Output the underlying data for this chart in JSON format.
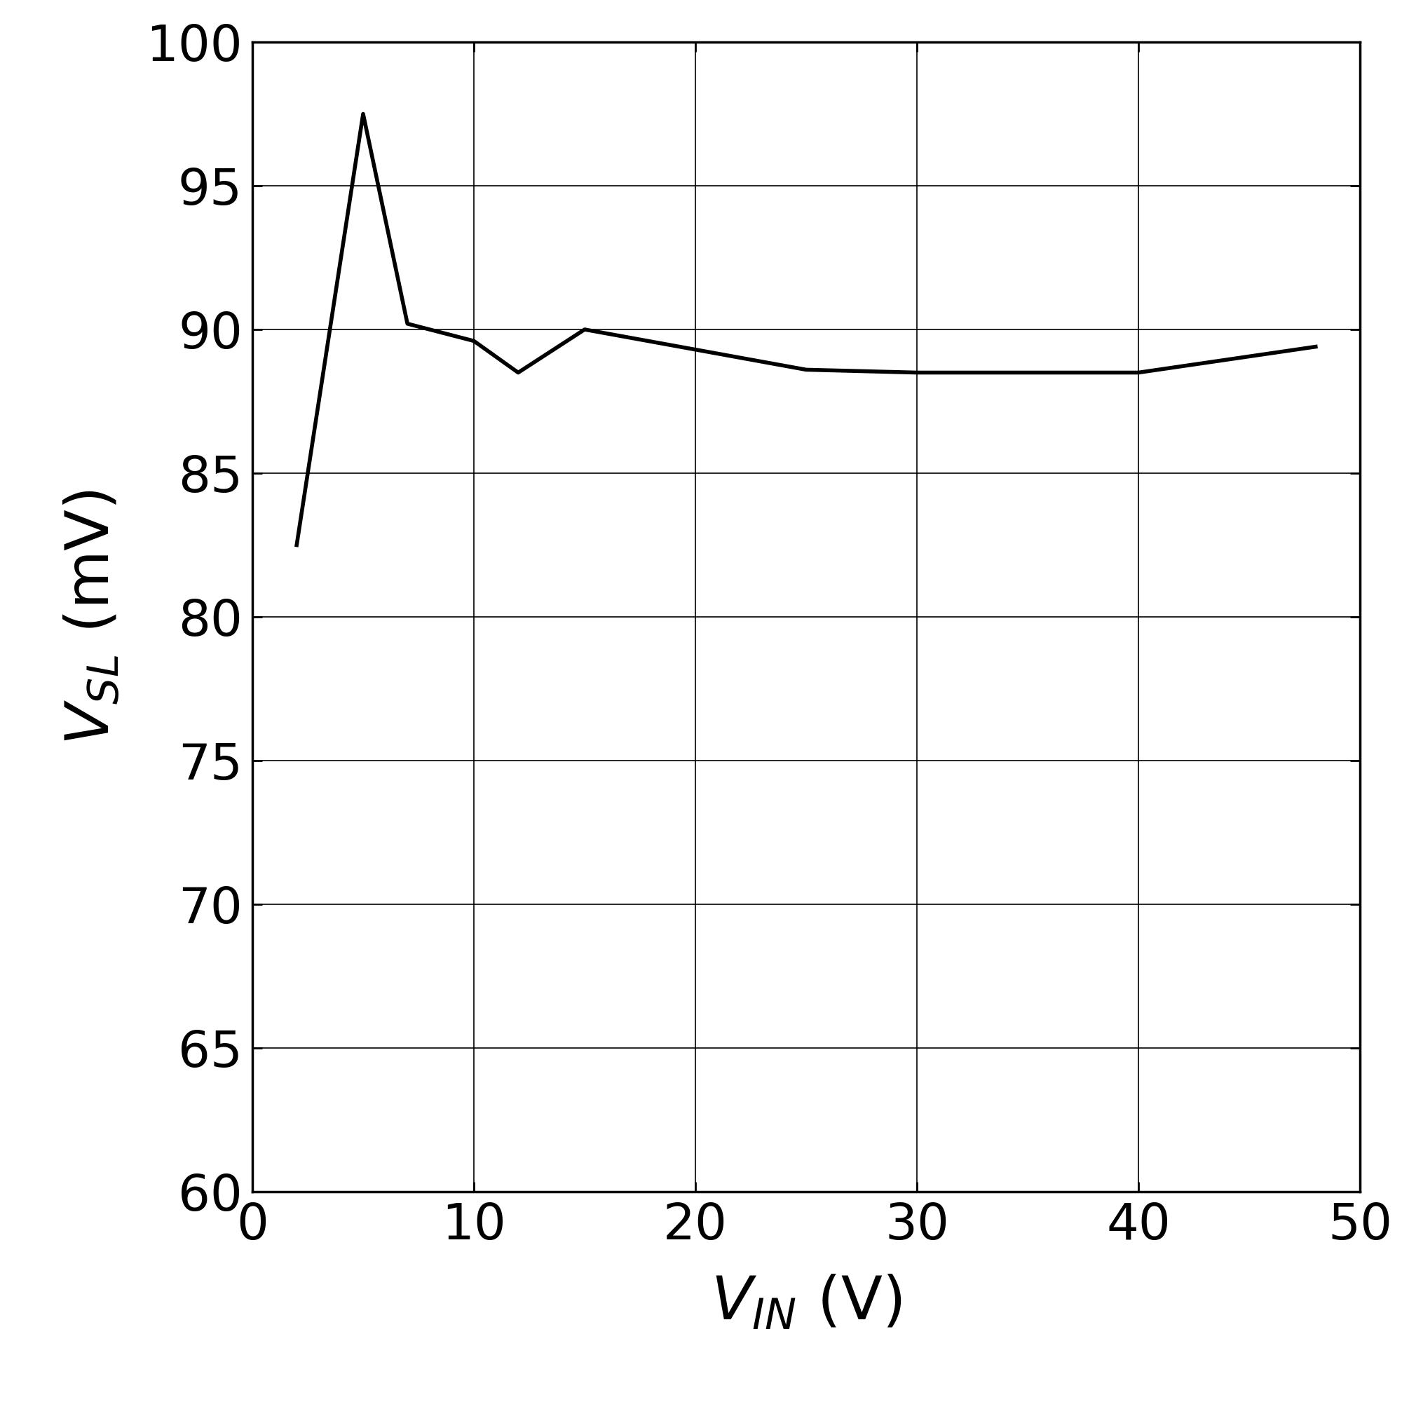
{
  "x": [
    2,
    5,
    7,
    10,
    12,
    15,
    20,
    25,
    30,
    40,
    48
  ],
  "y": [
    82.5,
    97.5,
    90.2,
    89.6,
    88.5,
    90.0,
    89.3,
    88.6,
    88.5,
    88.5,
    89.4
  ],
  "xlabel": "$V_{IN}$ (V)",
  "ylabel": "$V_{SL}$ (mV)",
  "xlim": [
    0,
    50
  ],
  "ylim": [
    60,
    100
  ],
  "xticks": [
    0,
    10,
    20,
    30,
    40,
    50
  ],
  "yticks": [
    60,
    65,
    70,
    75,
    80,
    85,
    90,
    95,
    100
  ],
  "line_color": "#000000",
  "line_width": 4.0,
  "background_color": "#ffffff",
  "grid_color": "#000000",
  "grid_linewidth": 1.2,
  "tick_fontsize": 52,
  "label_fontsize": 62,
  "spine_linewidth": 2.5
}
